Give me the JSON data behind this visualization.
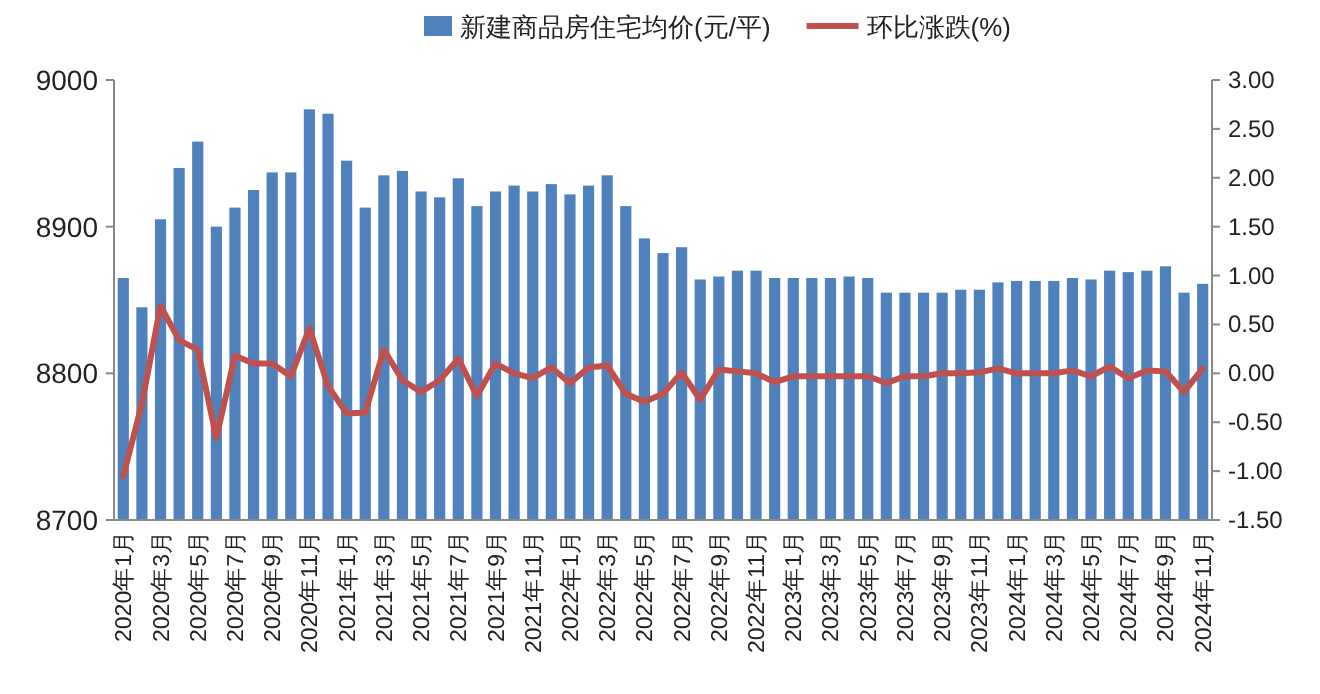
{
  "chart_data": {
    "type": "bar",
    "legend": "top",
    "categories": [
      "2020年1月",
      null,
      "2020年3月",
      null,
      "2020年5月",
      null,
      "2020年7月",
      null,
      "2020年9月",
      null,
      "2020年11月",
      null,
      "2021年1月",
      null,
      "2021年3月",
      null,
      "2021年5月",
      null,
      "2021年7月",
      null,
      "2021年9月",
      null,
      "2021年11月",
      null,
      "2022年1月",
      null,
      "2022年3月",
      null,
      "2022年5月",
      null,
      "2022年7月",
      null,
      "2022年9月",
      null,
      "2022年11月",
      null,
      "2023年1月",
      null,
      "2023年3月",
      null,
      "2023年5月",
      null,
      "2023年7月",
      null,
      "2023年9月",
      null,
      "2023年11月",
      null,
      "2024年1月",
      null,
      "2024年3月",
      null,
      "2024年5月",
      null,
      "2024年7月",
      null,
      "2024年9月",
      null,
      "2024年11月"
    ],
    "series": [
      {
        "name": "新建商品房住宅均价(元/平)",
        "color": "#4f81bd",
        "values": [
          8865,
          8845,
          8905,
          8940,
          8958,
          8900,
          8913,
          8925,
          8937,
          8937,
          8980,
          8977,
          8945,
          8913,
          8935,
          8938,
          8924,
          8920,
          8933,
          8914,
          8924,
          8928,
          8924,
          8929,
          8922,
          8928,
          8935,
          8914,
          8892,
          8882,
          8886,
          8864,
          8866,
          8870,
          8870,
          8865,
          8865,
          8865,
          8865,
          8866,
          8865,
          8855,
          8855,
          8855,
          8855,
          8857,
          8857,
          8862,
          8863,
          8863,
          8863,
          8865,
          8864,
          8870,
          8869,
          8870,
          8873,
          8855,
          8861
        ]
      },
      {
        "name": "环比涨跌(%)",
        "type": "line",
        "axis": "y2",
        "color": "#c0504d",
        "values": [
          -1.05,
          -0.31,
          0.69,
          0.34,
          0.24,
          -0.66,
          0.18,
          0.1,
          0.1,
          -0.03,
          0.46,
          -0.13,
          -0.41,
          -0.4,
          0.24,
          -0.07,
          -0.19,
          -0.07,
          0.15,
          -0.23,
          0.1,
          0.0,
          -0.05,
          0.06,
          -0.1,
          0.06,
          0.08,
          -0.21,
          -0.29,
          -0.21,
          0.01,
          -0.27,
          0.04,
          0.02,
          0.0,
          -0.09,
          -0.03,
          -0.03,
          -0.03,
          -0.03,
          -0.03,
          -0.1,
          -0.03,
          -0.03,
          0.0,
          0.0,
          0.01,
          0.05,
          0.0,
          0.0,
          0.0,
          0.03,
          -0.03,
          0.07,
          -0.05,
          0.03,
          0.02,
          -0.19,
          0.05
        ]
      }
    ],
    "ylim": [
      8700,
      9000
    ],
    "yticks": [
      8700,
      8800,
      8900,
      9000
    ],
    "y2lim": [
      -1.5,
      3
    ],
    "y2ticks": [
      {
        "value": -1.5,
        "label": "-1.50"
      },
      {
        "value": -1,
        "label": "-1.00"
      },
      {
        "value": -0.5,
        "label": "-0.50"
      },
      {
        "value": 0,
        "label": "0.00"
      },
      {
        "value": 0.5,
        "label": "0.50"
      },
      {
        "value": 1,
        "label": "1.00"
      },
      {
        "value": 1.5,
        "label": "1.50"
      },
      {
        "value": 2,
        "label": "2.00"
      },
      {
        "value": 2.5,
        "label": "2.50"
      },
      {
        "value": 3,
        "label": "3.00"
      }
    ]
  }
}
